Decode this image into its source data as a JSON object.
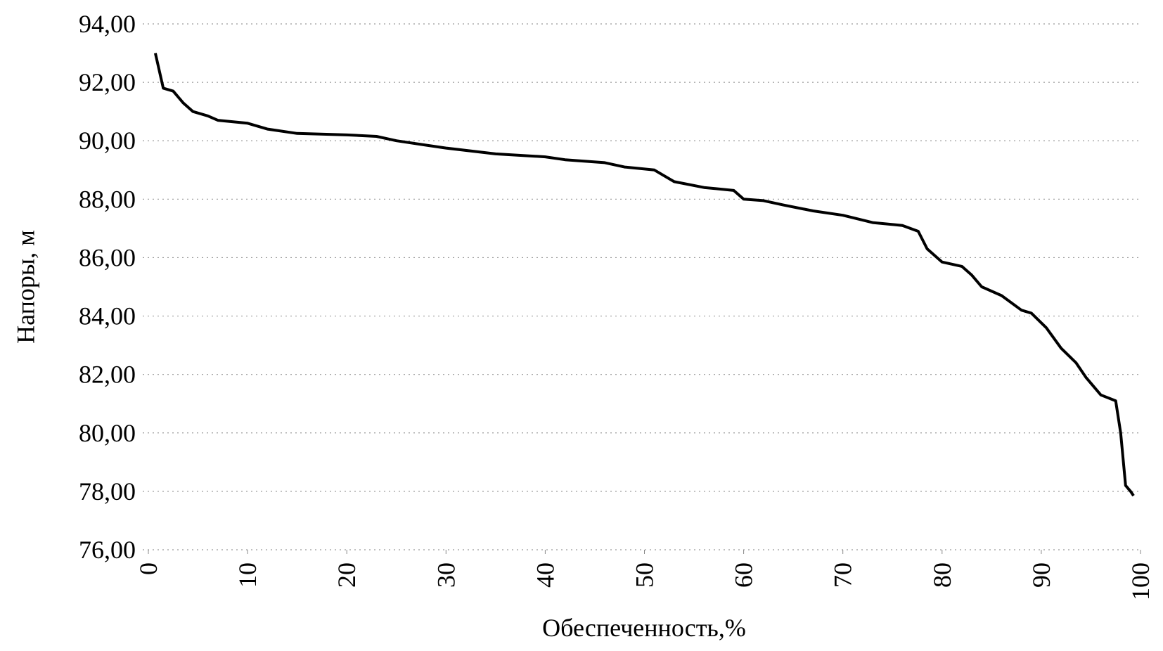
{
  "chart_data": {
    "type": "line",
    "x_label": "Обеспеченность,%",
    "y_label": "Напоры, м",
    "xlim": [
      0,
      100
    ],
    "xticks": [
      0,
      10,
      20,
      30,
      40,
      50,
      60,
      70,
      80,
      90,
      100
    ],
    "ylim": [
      76,
      94
    ],
    "yticks": [
      {
        "value": 76,
        "label": "76,00"
      },
      {
        "value": 78,
        "label": "78,00"
      },
      {
        "value": 80,
        "label": "80,00"
      },
      {
        "value": 82,
        "label": "82,00"
      },
      {
        "value": 84,
        "label": "84,00"
      },
      {
        "value": 86,
        "label": "86,00"
      },
      {
        "value": 88,
        "label": "88,00"
      },
      {
        "value": 90,
        "label": "90,00"
      },
      {
        "value": 92,
        "label": "92,00"
      },
      {
        "value": 94,
        "label": "94,00"
      }
    ],
    "grid": true,
    "series": [
      {
        "color": "#000000",
        "x": [
          0.7,
          1.5,
          2.5,
          3.5,
          4.5,
          6,
          7,
          10,
          12,
          15,
          20,
          23,
          25,
          28,
          30,
          35,
          40,
          42,
          46,
          48,
          51,
          53,
          56,
          59,
          60,
          62,
          64,
          67,
          70,
          73,
          76,
          77.6,
          78.5,
          80,
          82,
          83,
          84,
          86,
          88,
          89,
          90.5,
          92,
          93.5,
          94.5,
          96,
          97.5,
          98,
          98.5,
          99,
          99.3
        ],
        "values": [
          93.0,
          91.8,
          91.7,
          91.3,
          91.0,
          90.85,
          90.7,
          90.6,
          90.4,
          90.25,
          90.2,
          90.15,
          90.0,
          89.85,
          89.75,
          89.55,
          89.45,
          89.35,
          89.25,
          89.1,
          89.0,
          88.6,
          88.4,
          88.3,
          88.0,
          87.95,
          87.8,
          87.6,
          87.45,
          87.2,
          87.1,
          86.9,
          86.3,
          85.85,
          85.7,
          85.4,
          85.0,
          84.7,
          84.2,
          84.1,
          83.6,
          82.9,
          82.4,
          81.9,
          81.3,
          81.1,
          80.0,
          78.2,
          78.0,
          77.85
        ]
      }
    ]
  }
}
